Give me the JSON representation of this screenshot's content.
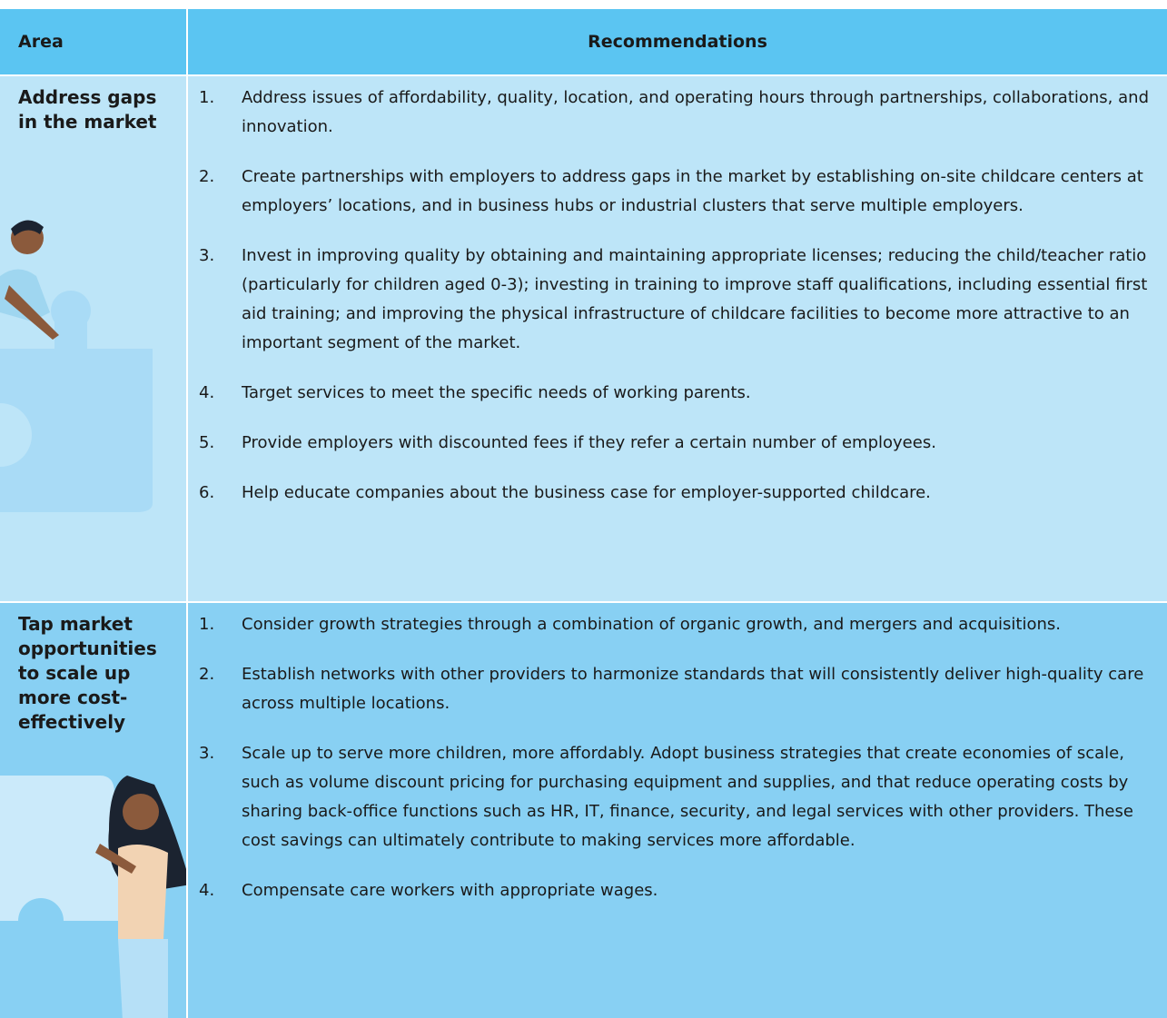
{
  "header": {
    "area": "Area",
    "recommendations": "Recommendations"
  },
  "rows": [
    {
      "area": "Address gaps in the market",
      "items": [
        {
          "number": "1.",
          "text": "Address issues of affordability, quality, location, and operating hours through partnerships, collaborations, and innovation."
        },
        {
          "number": "2.",
          "text": "Create partnerships with employers to address gaps in the market by establishing on-site childcare centers at employers’ locations, and in business hubs or industrial clusters that serve multiple employers."
        },
        {
          "number": "3.",
          "text": "Invest in improving quality by obtaining and maintaining appropriate licenses; reducing the child/teacher ratio (particularly for children aged 0-3); investing in training to improve staff qualifications, including essential first aid training; and improving the physical infrastructure of childcare facilities to become more attractive to an important segment of the market."
        },
        {
          "number": "4.",
          "text": "Target services to meet the specific needs of working parents."
        },
        {
          "number": "5.",
          "text": "Provide employers with discounted fees if they refer a certain number of employees."
        },
        {
          "number": "6.",
          "text": "Help educate companies about the business case for employer-supported childcare."
        }
      ]
    },
    {
      "area": "Tap market opportunities to scale up more cost-effectively",
      "items": [
        {
          "number": "1.",
          "text": "Consider growth strategies through a combination of organic growth, and mergers and acquisitions."
        },
        {
          "number": "2.",
          "text": "Establish networks with other providers to harmonize standards that will consistently deliver high-quality care across multiple locations."
        },
        {
          "number": "3.",
          "text": "Scale up to serve more children, more affordably. Adopt business strategies that create economies of scale, such as volume discount pricing for purchasing equipment and supplies, and that reduce operating costs by sharing back-office functions such as HR, IT, finance, security, and legal services with other providers. These cost savings can ultimately contribute to making services more affordable."
        },
        {
          "number": "4.",
          "text": "Compensate care workers with appropriate wages."
        }
      ]
    }
  ]
}
